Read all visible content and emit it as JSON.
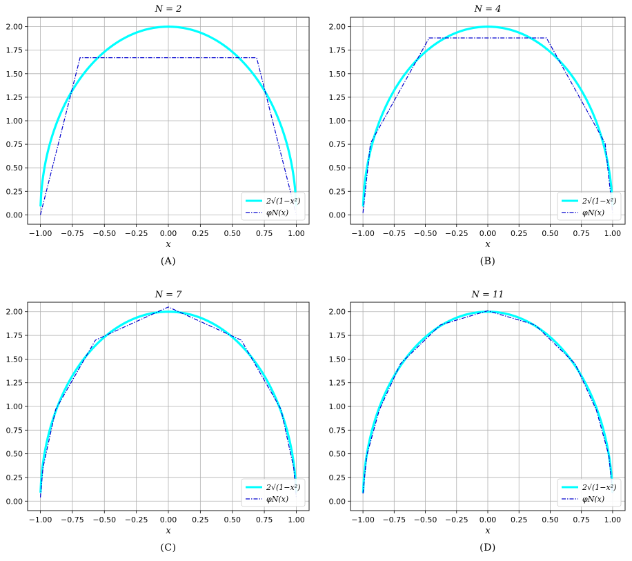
{
  "colors": {
    "exact": "#00ffff",
    "approx": "#0000cd",
    "grid": "#b0b0b0"
  },
  "chart_data": [
    {
      "type": "line",
      "panel": "A",
      "title": "N = 2",
      "caption": "(A)",
      "xlabel": "x",
      "xlim": [
        -1.1,
        1.1
      ],
      "ylim": [
        -0.1,
        2.1
      ],
      "grid": true,
      "legend": "lower-right",
      "xticks": [
        "-1.00",
        "-0.75",
        "-0.50",
        "-0.25",
        "0.00",
        "0.25",
        "0.50",
        "0.75",
        "1.00"
      ],
      "yticks": [
        "0.00",
        "0.25",
        "0.50",
        "0.75",
        "1.00",
        "1.25",
        "1.50",
        "1.75",
        "2.00"
      ],
      "series": [
        {
          "name": "2√(1−x²)",
          "style": "solid",
          "function": "2*sqrt(1-x^2)",
          "x_range": [
            -0.999,
            0.999
          ]
        },
        {
          "name": "φN(x)",
          "style": "dashdot",
          "x": [
            -1.0,
            -0.69,
            0.69,
            1.0
          ],
          "y": [
            0.0,
            1.67,
            1.67,
            0.0
          ]
        }
      ]
    },
    {
      "type": "line",
      "panel": "B",
      "title": "N = 4",
      "caption": "(B)",
      "xlabel": "x",
      "xlim": [
        -1.1,
        1.1
      ],
      "ylim": [
        -0.1,
        2.1
      ],
      "grid": true,
      "legend": "lower-right",
      "xticks": [
        "-1.00",
        "-0.75",
        "-0.50",
        "-0.25",
        "0.00",
        "0.25",
        "0.50",
        "0.75",
        "1.00"
      ],
      "yticks": [
        "0.00",
        "0.25",
        "0.50",
        "0.75",
        "1.00",
        "1.25",
        "1.50",
        "1.75",
        "2.00"
      ],
      "series": [
        {
          "name": "2√(1−x²)",
          "style": "solid",
          "function": "2*sqrt(1-x^2)",
          "x_range": [
            -0.999,
            0.999
          ]
        },
        {
          "name": "φN(x)",
          "style": "dashdot",
          "x": [
            -1.0,
            -0.94,
            -0.47,
            0.47,
            0.94,
            1.0
          ],
          "y": [
            0.02,
            0.76,
            1.88,
            1.88,
            0.76,
            0.02
          ]
        }
      ]
    },
    {
      "type": "line",
      "panel": "C",
      "title": "N = 7",
      "caption": "(C)",
      "xlabel": "x",
      "xlim": [
        -1.1,
        1.1
      ],
      "ylim": [
        -0.1,
        2.1
      ],
      "grid": true,
      "legend": "lower-right",
      "xticks": [
        "-1.00",
        "-0.75",
        "-0.50",
        "-0.25",
        "0.00",
        "0.25",
        "0.50",
        "0.75",
        "1.00"
      ],
      "yticks": [
        "0.00",
        "0.25",
        "0.50",
        "0.75",
        "1.00",
        "1.25",
        "1.50",
        "1.75",
        "2.00"
      ],
      "series": [
        {
          "name": "2√(1−x²)",
          "style": "solid",
          "function": "2*sqrt(1-x^2)",
          "x_range": [
            -0.999,
            0.999
          ]
        },
        {
          "name": "φN(x)",
          "style": "dashdot",
          "x": [
            -1.0,
            -0.98,
            -0.88,
            -0.57,
            0.0,
            0.57,
            0.88,
            0.98,
            1.0
          ],
          "y": [
            0.04,
            0.35,
            0.97,
            1.7,
            2.05,
            1.7,
            0.97,
            0.35,
            0.04
          ]
        }
      ]
    },
    {
      "type": "line",
      "panel": "D",
      "title": "N = 11",
      "caption": "(D)",
      "xlabel": "x",
      "xlim": [
        -1.1,
        1.1
      ],
      "ylim": [
        -0.1,
        2.1
      ],
      "grid": true,
      "legend": "lower-right",
      "xticks": [
        "-1.00",
        "-0.75",
        "-0.50",
        "-0.25",
        "0.00",
        "0.25",
        "0.50",
        "0.75",
        "1.00"
      ],
      "yticks": [
        "0.00",
        "0.25",
        "0.50",
        "0.75",
        "1.00",
        "1.25",
        "1.50",
        "1.75",
        "2.00"
      ],
      "series": [
        {
          "name": "2√(1−x²)",
          "style": "solid",
          "function": "2*sqrt(1-x^2)",
          "x_range": [
            -0.999,
            0.999
          ]
        },
        {
          "name": "φN(x)",
          "style": "dashdot",
          "x": [
            -1.0,
            -0.97,
            -0.87,
            -0.7,
            -0.38,
            0.0,
            0.38,
            0.7,
            0.87,
            0.97,
            1.0
          ],
          "y": [
            0.08,
            0.48,
            0.96,
            1.45,
            1.86,
            2.01,
            1.86,
            1.45,
            0.96,
            0.48,
            0.08
          ]
        }
      ]
    }
  ]
}
